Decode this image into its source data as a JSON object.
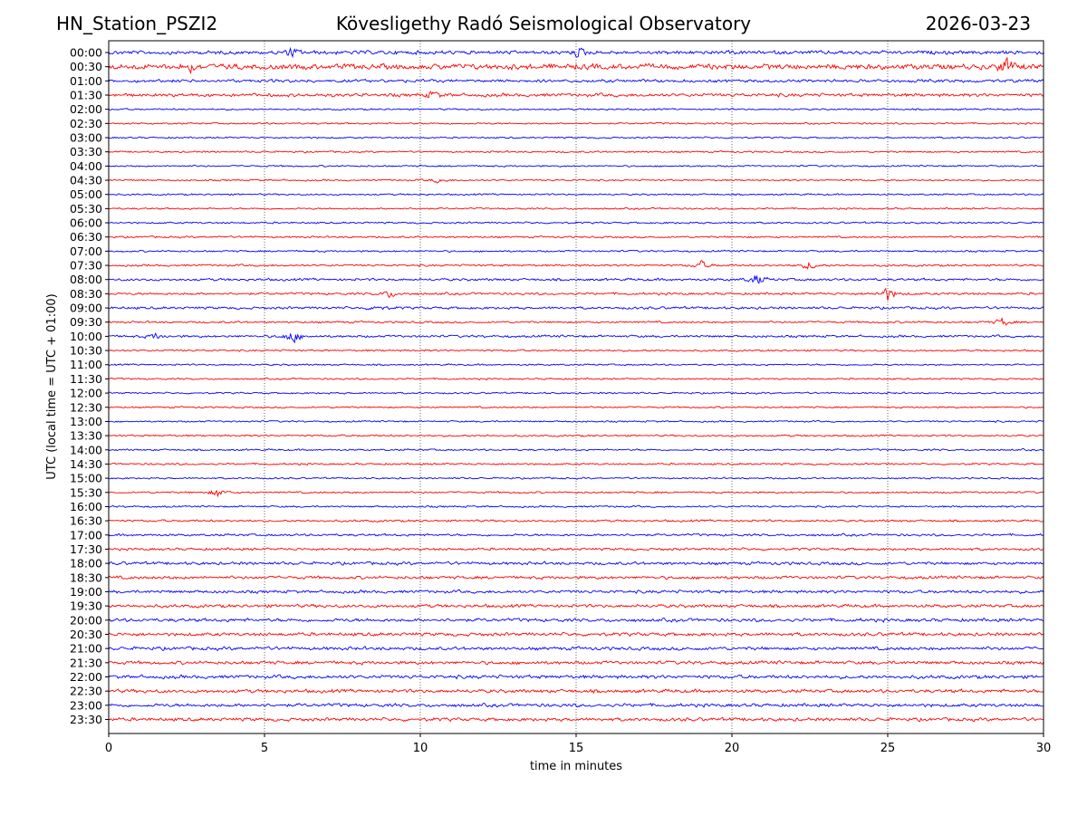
{
  "header": {
    "station": "HN_Station_PSZI2",
    "observatory": "Kövesligethy Radó Seismological Observatory",
    "date": "2026-03-23"
  },
  "chart_data": {
    "type": "line",
    "title": "Kövesligethy Radó Seismological Observatory",
    "xlabel": "time in minutes",
    "ylabel": "UTC (local time = UTC + 01:00)",
    "xlim": [
      0,
      30
    ],
    "x_ticks": [
      "0",
      "5",
      "10",
      "15",
      "20",
      "25",
      "30"
    ],
    "grid": "vertical dotted lines at 5-minute ticks",
    "row_labels": [
      "00:00",
      "00:30",
      "01:00",
      "01:30",
      "02:00",
      "02:30",
      "03:00",
      "03:30",
      "04:00",
      "04:30",
      "05:00",
      "05:30",
      "06:00",
      "06:30",
      "07:00",
      "07:30",
      "08:00",
      "08:30",
      "09:00",
      "09:30",
      "10:00",
      "10:30",
      "11:00",
      "11:30",
      "12:00",
      "12:30",
      "13:00",
      "13:30",
      "14:00",
      "14:30",
      "15:00",
      "15:30",
      "16:00",
      "16:30",
      "17:00",
      "17:30",
      "18:00",
      "18:30",
      "19:00",
      "19:30",
      "20:00",
      "20:30",
      "21:00",
      "21:30",
      "22:00",
      "22:30",
      "23:00",
      "23:30"
    ],
    "series_colors": [
      "#0000ff",
      "#ff0000"
    ],
    "noise_level": [
      2.2,
      3.2,
      1.8,
      2.0,
      1.0,
      1.0,
      1.0,
      1.0,
      1.0,
      1.0,
      1.0,
      1.0,
      1.1,
      1.1,
      1.1,
      1.2,
      1.5,
      1.4,
      1.5,
      1.2,
      1.4,
      1.1,
      1.0,
      1.0,
      1.0,
      1.0,
      1.0,
      1.1,
      1.1,
      1.1,
      1.0,
      1.1,
      1.1,
      1.3,
      1.4,
      1.5,
      1.8,
      1.8,
      1.8,
      1.9,
      2.0,
      2.0,
      2.0,
      2.0,
      2.1,
      2.1,
      2.0,
      2.0
    ],
    "events": [
      {
        "row": 0,
        "minute": 5.9,
        "amplitude": 6
      },
      {
        "row": 0,
        "minute": 15.1,
        "amplitude": 6
      },
      {
        "row": 1,
        "minute": 2.6,
        "amplitude": 6
      },
      {
        "row": 1,
        "minute": 28.8,
        "amplitude": 12
      },
      {
        "row": 3,
        "minute": 10.4,
        "amplitude": 5
      },
      {
        "row": 9,
        "minute": 10.6,
        "amplitude": 4
      },
      {
        "row": 15,
        "minute": 19.0,
        "amplitude": 6
      },
      {
        "row": 15,
        "minute": 22.5,
        "amplitude": 6
      },
      {
        "row": 16,
        "minute": 20.8,
        "amplitude": 8
      },
      {
        "row": 17,
        "minute": 9.0,
        "amplitude": 5
      },
      {
        "row": 17,
        "minute": 25.0,
        "amplitude": 10
      },
      {
        "row": 18,
        "minute": 8.6,
        "amplitude": 4
      },
      {
        "row": 19,
        "minute": 28.7,
        "amplitude": 6
      },
      {
        "row": 20,
        "minute": 5.9,
        "amplitude": 11
      },
      {
        "row": 20,
        "minute": 1.5,
        "amplitude": 4
      },
      {
        "row": 31,
        "minute": 3.5,
        "amplitude": 6
      }
    ]
  }
}
